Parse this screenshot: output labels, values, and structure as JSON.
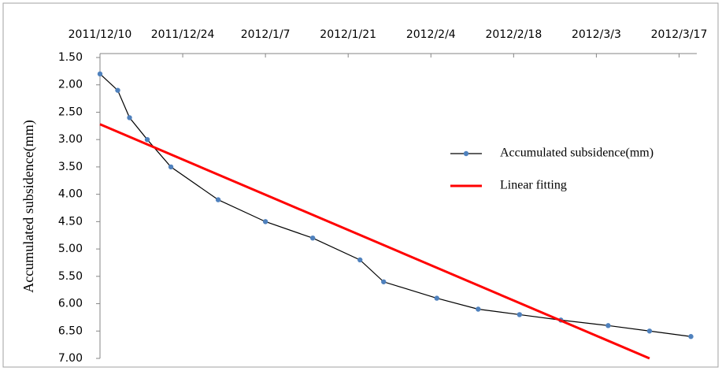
{
  "chart_data": {
    "type": "line",
    "y_label": "Accumulated subsidence(mm)",
    "x": [
      "2011/12/10",
      "2011/12/13",
      "2011/12/15",
      "2011/12/18",
      "2011/12/22",
      "2011/12/30",
      "2012/1/7",
      "2012/1/15",
      "2012/1/23",
      "2012/1/27",
      "2012/2/5",
      "2012/2/12",
      "2012/2/19",
      "2012/2/26",
      "2012/3/5",
      "2012/3/12",
      "2012/3/19"
    ],
    "series": [
      {
        "name": "Accumulated subsidence(mm)",
        "color": "#000000",
        "marker_color": "#4f81bd",
        "values": [
          1.8,
          2.1,
          2.6,
          3.0,
          3.5,
          4.1,
          4.5,
          4.8,
          5.2,
          5.6,
          5.9,
          6.1,
          6.2,
          6.3,
          6.4,
          6.5,
          6.6
        ]
      },
      {
        "name": "Linear fitting",
        "color": "#ff0000",
        "x": [
          "2011/12/10",
          "2012/3/12"
        ],
        "values": [
          2.72,
          7.0
        ]
      }
    ],
    "xlim": [
      "2011/12/10",
      "2012/3/20"
    ],
    "xticks": [
      "2011/12/10",
      "2011/12/24",
      "2012/1/7",
      "2012/1/21",
      "2012/2/4",
      "2012/2/18",
      "2012/3/3",
      "2012/3/17"
    ],
    "x_axis_position": "top",
    "ylim": [
      1.5,
      7.0
    ],
    "y_reversed": true,
    "yticks": [
      {
        "value": 1.5,
        "label": "1.50"
      },
      {
        "value": 2.0,
        "label": "2.00"
      },
      {
        "value": 2.5,
        "label": "2.50"
      },
      {
        "value": 3.0,
        "label": "3.00"
      },
      {
        "value": 3.5,
        "label": "3.50"
      },
      {
        "value": 4.0,
        "label": "4.00"
      },
      {
        "value": 4.5,
        "label": "4.50"
      },
      {
        "value": 5.0,
        "label": "5.00"
      },
      {
        "value": 5.5,
        "label": "5.50"
      },
      {
        "value": 6.0,
        "label": "6.00"
      },
      {
        "value": 6.5,
        "label": "6.50"
      },
      {
        "value": 7.0,
        "label": "7.00"
      }
    ],
    "grid": false,
    "legend": "right"
  }
}
